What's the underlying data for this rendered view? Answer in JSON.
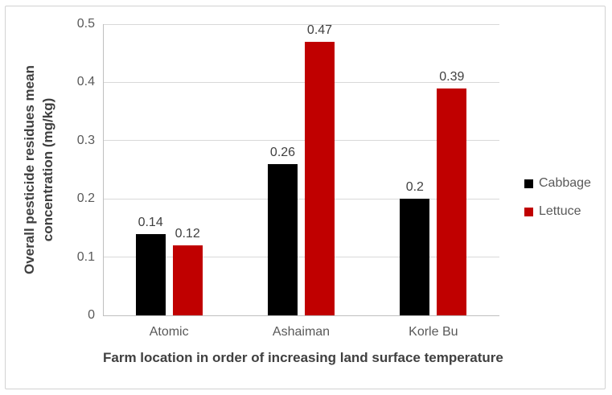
{
  "chart_data": {
    "type": "bar",
    "title": "",
    "categories": [
      "Atomic",
      "Ashaiman",
      "Korle Bu"
    ],
    "series": [
      {
        "name": "Cabbage",
        "color": "#000000",
        "values": [
          0.14,
          0.26,
          0.2
        ]
      },
      {
        "name": "Lettuce",
        "color": "#c00000",
        "values": [
          0.12,
          0.47,
          0.39
        ]
      }
    ],
    "data_labels": [
      [
        "0.14",
        "0.26",
        "0.2"
      ],
      [
        "0.12",
        "0.47",
        "0.39"
      ]
    ],
    "xlabel": "Farm location in order of increasing land surface temperature",
    "ylabel": "Overall pesticide residues mean concentration (mg/kg)",
    "ylabel_lines": {
      "0": "Overall pesticide residues mean",
      "1": "concentration (mg/kg)"
    },
    "ylim": [
      0,
      0.5
    ],
    "ytick_step": 0.1,
    "yticks": [
      "0",
      "0.1",
      "0.2",
      "0.3",
      "0.4",
      "0.5"
    ],
    "grid": true,
    "legend_position": "right",
    "legend_labels": [
      "Cabbage",
      "Lettuce"
    ]
  }
}
